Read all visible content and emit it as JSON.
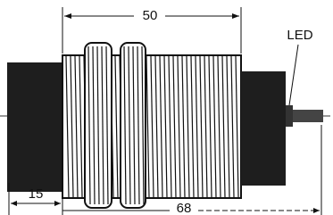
{
  "dimensions": {
    "thread_length": "50",
    "led": "LED",
    "front_length": "15",
    "total_length": "68"
  }
}
